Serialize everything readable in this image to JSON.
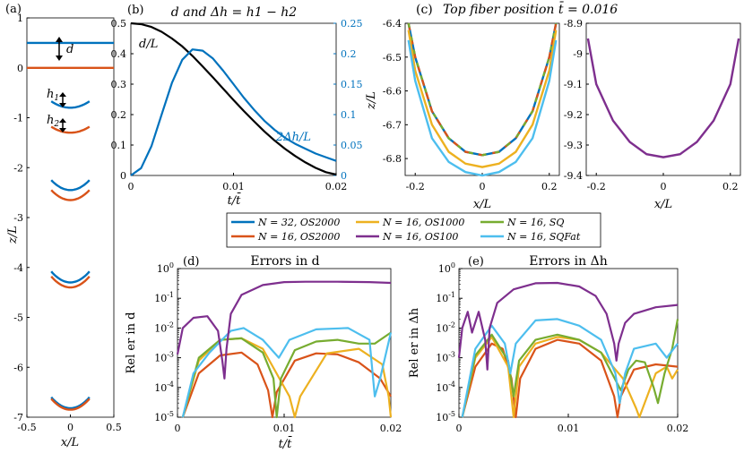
{
  "panel_labels": {
    "a": "(a)",
    "b": "(b)",
    "c": "(c)",
    "d": "(d)",
    "e": "(e)"
  },
  "annotations": {
    "d": "d",
    "h1": "h",
    "h1_sub": "1",
    "h2": "h",
    "h2_sub": "2",
    "dL": "d/L",
    "dhL": "2Δh/L"
  },
  "colors": {
    "blue": "#0072BD",
    "orange": "#D95319",
    "yellow": "#EDB120",
    "purple": "#7E2F8E",
    "green": "#77AC30",
    "cyan": "#4DBEEE",
    "black": "#000000"
  },
  "legend": [
    {
      "label": "N = 32, OS2000",
      "color": "#0072BD"
    },
    {
      "label": "N = 16, OS2000",
      "color": "#D95319"
    },
    {
      "label": "N = 16, OS1000",
      "color": "#EDB120"
    },
    {
      "label": "N = 16, OS100",
      "color": "#7E2F8E"
    },
    {
      "label": "N = 16, SQ",
      "color": "#77AC30"
    },
    {
      "label": "N = 16, SQFat",
      "color": "#4DBEEE"
    }
  ],
  "chart_data": [
    {
      "id": "a",
      "type": "line",
      "title": "",
      "xlabel": "x/L",
      "ylabel": "z/L",
      "xlim": [
        -0.5,
        0.5
      ],
      "ylim": [
        -7,
        1
      ],
      "xticks": [
        "-0.5",
        "0",
        "0.5"
      ],
      "yticks": [
        "1",
        "0",
        "-1",
        "-2",
        "-3",
        "-4",
        "-5",
        "-6",
        "-7"
      ],
      "fiber_pairs": [
        {
          "top": {
            "center": 0.5,
            "sag": 0.0,
            "color": "#0072BD"
          },
          "bottom": {
            "center": 0.0,
            "sag": 0.0,
            "color": "#D95319"
          }
        },
        {
          "top": {
            "center": -0.8,
            "sag": 0.13,
            "color": "#0072BD"
          },
          "bottom": {
            "center": -1.3,
            "sag": 0.12,
            "color": "#D95319"
          }
        },
        {
          "top": {
            "center": -2.45,
            "sag": 0.2,
            "color": "#0072BD"
          },
          "bottom": {
            "center": -2.65,
            "sag": 0.2,
            "color": "#D95319"
          }
        },
        {
          "top": {
            "center": -4.3,
            "sag": 0.22,
            "color": "#0072BD"
          },
          "bottom": {
            "center": -4.4,
            "sag": 0.22,
            "color": "#D95319"
          }
        },
        {
          "top": {
            "center": -6.82,
            "sag": 0.22,
            "color": "#0072BD"
          },
          "bottom": {
            "center": -6.85,
            "sag": 0.22,
            "color": "#D95319"
          }
        }
      ]
    },
    {
      "id": "b",
      "type": "line",
      "title": "d and Δh = h1 − h2",
      "xlabel": "t/t̄",
      "ylabel": "",
      "xlim": [
        0,
        0.02
      ],
      "ylim_left": [
        0,
        0.5
      ],
      "ylim_right": [
        0,
        0.25
      ],
      "xticks": [
        "0",
        "0.01",
        "0.02"
      ],
      "yticks_left": [
        "0",
        "0.1",
        "0.2",
        "0.3",
        "0.4",
        "0.5"
      ],
      "yticks_right": [
        "0",
        "0.05",
        "0.1",
        "0.15",
        "0.2",
        "0.25"
      ],
      "series": [
        {
          "name": "d/L",
          "axis": "left",
          "color": "#000000",
          "x": [
            0,
            0.001,
            0.002,
            0.003,
            0.004,
            0.005,
            0.006,
            0.007,
            0.008,
            0.009,
            0.01,
            0.011,
            0.012,
            0.013,
            0.014,
            0.015,
            0.016,
            0.017,
            0.018,
            0.019,
            0.02
          ],
          "y": [
            0.5,
            0.497,
            0.488,
            0.472,
            0.45,
            0.424,
            0.393,
            0.358,
            0.322,
            0.285,
            0.248,
            0.212,
            0.178,
            0.145,
            0.115,
            0.088,
            0.064,
            0.043,
            0.025,
            0.011,
            0.003
          ]
        },
        {
          "name": "2Δh/L",
          "axis": "right",
          "color": "#0072BD",
          "x": [
            0,
            0.001,
            0.002,
            0.003,
            0.004,
            0.005,
            0.006,
            0.007,
            0.008,
            0.009,
            0.01,
            0.011,
            0.012,
            0.013,
            0.014,
            0.015,
            0.016,
            0.017,
            0.018,
            0.019,
            0.02
          ],
          "y": [
            0,
            0.012,
            0.048,
            0.1,
            0.152,
            0.19,
            0.207,
            0.205,
            0.192,
            0.172,
            0.15,
            0.128,
            0.108,
            0.09,
            0.075,
            0.062,
            0.052,
            0.044,
            0.036,
            0.03,
            0.024
          ]
        }
      ]
    },
    {
      "id": "c",
      "type": "line",
      "title": "Top fiber position t̄ = 0.016",
      "xlabel": "x/L",
      "ylabel": "z/L",
      "subplots": [
        {
          "xlim": [
            -0.23,
            0.23
          ],
          "ylim": [
            -6.85,
            -6.4
          ],
          "xticks": [
            "-0.2",
            "0",
            "0.2"
          ],
          "yticks": [
            "-6.4",
            "-6.5",
            "-6.6",
            "-6.7",
            "-6.8"
          ],
          "series": [
            {
              "name": "N = 32, OS2000",
              "color": "#0072BD",
              "x": [
                -0.22,
                -0.2,
                -0.15,
                -0.1,
                -0.05,
                0,
                0.05,
                0.1,
                0.15,
                0.2,
                0.22
              ],
              "y": [
                -6.4,
                -6.5,
                -6.66,
                -6.74,
                -6.78,
                -6.79,
                -6.78,
                -6.74,
                -6.66,
                -6.5,
                -6.4
              ]
            },
            {
              "name": "N = 16, OS2000",
              "color": "#D95319",
              "x": [
                -0.22,
                -0.2,
                -0.15,
                -0.1,
                -0.05,
                0,
                0.05,
                0.1,
                0.15,
                0.2,
                0.22
              ],
              "y": [
                -6.4,
                -6.5,
                -6.66,
                -6.74,
                -6.78,
                -6.79,
                -6.78,
                -6.74,
                -6.66,
                -6.5,
                -6.4
              ]
            },
            {
              "name": "N = 16, SQ",
              "color": "#77AC30",
              "x": [
                -0.22,
                -0.2,
                -0.15,
                -0.1,
                -0.05,
                0,
                0.05,
                0.1,
                0.15,
                0.2,
                0.22
              ],
              "y": [
                -6.4,
                -6.5,
                -6.66,
                -6.74,
                -6.78,
                -6.79,
                -6.78,
                -6.74,
                -6.66,
                -6.5,
                -6.4
              ]
            },
            {
              "name": "N = 16, OS1000",
              "color": "#EDB120",
              "x": [
                -0.22,
                -0.2,
                -0.15,
                -0.1,
                -0.05,
                0,
                0.05,
                0.1,
                0.15,
                0.2,
                0.22
              ],
              "y": [
                -6.42,
                -6.54,
                -6.7,
                -6.78,
                -6.815,
                -6.825,
                -6.815,
                -6.78,
                -6.7,
                -6.54,
                -6.42
              ]
            },
            {
              "name": "N = 16, SQFat",
              "color": "#4DBEEE",
              "x": [
                -0.22,
                -0.2,
                -0.15,
                -0.1,
                -0.05,
                0,
                0.05,
                0.1,
                0.15,
                0.2,
                0.22
              ],
              "y": [
                -6.45,
                -6.57,
                -6.74,
                -6.81,
                -6.84,
                -6.85,
                -6.84,
                -6.81,
                -6.74,
                -6.57,
                -6.45
              ]
            }
          ]
        },
        {
          "xlim": [
            -0.23,
            0.23
          ],
          "ylim": [
            -9.4,
            -8.9
          ],
          "xticks": [
            "-0.2",
            "0",
            "0.2"
          ],
          "yticks": [
            "-8.9",
            "-9",
            "-9.1",
            "-9.2",
            "-9.3",
            "-9.4"
          ],
          "series": [
            {
              "name": "N = 16, OS100",
              "color": "#7E2F8E",
              "x": [
                -0.225,
                -0.2,
                -0.15,
                -0.1,
                -0.05,
                0,
                0.05,
                0.1,
                0.15,
                0.2,
                0.225
              ],
              "y": [
                -8.95,
                -9.1,
                -9.22,
                -9.29,
                -9.33,
                -9.34,
                -9.33,
                -9.29,
                -9.22,
                -9.1,
                -8.95
              ]
            }
          ]
        }
      ]
    },
    {
      "id": "d",
      "type": "line",
      "scale": "log",
      "title": "Errors in d",
      "xlabel": "t/t̄",
      "ylabel": "Rel er in d",
      "xlim": [
        0,
        0.02
      ],
      "ylim": [
        1e-05,
        1
      ],
      "xticks": [
        "0",
        "0.01",
        "0.02"
      ],
      "yticks": [
        "10^0",
        "10^-1",
        "10^-2",
        "10^-3",
        "10^-4",
        "10^-5"
      ],
      "series": [
        {
          "name": "N = 16, OS2000",
          "color": "#D95319",
          "x": [
            0.0005,
            0.002,
            0.004,
            0.006,
            0.0075,
            0.0085,
            0.0089,
            0.0093,
            0.011,
            0.013,
            0.015,
            0.017,
            0.019,
            0.02
          ],
          "y": [
            1e-05,
            0.0003,
            0.0012,
            0.0015,
            0.0006,
            8e-05,
            1e-05,
            7e-05,
            0.0008,
            0.0014,
            0.0013,
            0.0007,
            0.0002,
            5e-05
          ]
        },
        {
          "name": "N = 16, OS1000",
          "color": "#EDB120",
          "x": [
            0.0005,
            0.002,
            0.004,
            0.006,
            0.008,
            0.0105,
            0.011,
            0.0115,
            0.014,
            0.017,
            0.0192,
            0.0198,
            0.02
          ],
          "y": [
            1e-05,
            0.0008,
            0.004,
            0.0045,
            0.002,
            5e-05,
            1e-05,
            5e-05,
            0.0014,
            0.002,
            0.0006,
            5e-05,
            1e-05
          ]
        },
        {
          "name": "N = 16, SQ",
          "color": "#77AC30",
          "x": [
            0.0005,
            0.002,
            0.004,
            0.006,
            0.008,
            0.009,
            0.0093,
            0.0097,
            0.011,
            0.013,
            0.015,
            0.017,
            0.0185,
            0.02
          ],
          "y": [
            1e-05,
            0.001,
            0.004,
            0.0045,
            0.0015,
            0.0002,
            1e-05,
            0.0002,
            0.0018,
            0.0035,
            0.004,
            0.003,
            0.003,
            0.007
          ]
        },
        {
          "name": "N = 16, SQFat",
          "color": "#4DBEEE",
          "x": [
            0.0005,
            0.0015,
            0.003,
            0.005,
            0.0062,
            0.008,
            0.0095,
            0.0105,
            0.013,
            0.016,
            0.018,
            0.0185,
            0.019,
            0.02
          ],
          "y": [
            1e-05,
            0.0003,
            0.0015,
            0.008,
            0.01,
            0.004,
            0.001,
            0.004,
            0.009,
            0.01,
            0.004,
            5e-05,
            0.0002,
            0.007
          ]
        },
        {
          "name": "N = 16, OS100",
          "color": "#7E2F8E",
          "x": [
            0,
            0.0005,
            0.0015,
            0.0028,
            0.0038,
            0.0042,
            0.0044,
            0.0046,
            0.005,
            0.006,
            0.008,
            0.01,
            0.012,
            0.015,
            0.018,
            0.02
          ],
          "y": [
            0.0013,
            0.01,
            0.022,
            0.025,
            0.008,
            0.0008,
            0.0002,
            0.002,
            0.03,
            0.13,
            0.28,
            0.35,
            0.36,
            0.36,
            0.35,
            0.33
          ]
        }
      ]
    },
    {
      "id": "e",
      "type": "line",
      "scale": "log",
      "title": "Errors in Δh",
      "xlabel": "",
      "ylabel": "Rel er in Δh",
      "xlim": [
        0,
        0.02
      ],
      "ylim": [
        1e-05,
        1
      ],
      "xticks": [
        "0",
        "0.01",
        "0.02"
      ],
      "yticks": [
        "10^0",
        "10^-1",
        "10^-2",
        "10^-3",
        "10^-4",
        "10^-5"
      ],
      "series": [
        {
          "name": "N = 16, OS2000",
          "color": "#D95319",
          "x": [
            0.0003,
            0.0015,
            0.003,
            0.004,
            0.0048,
            0.0052,
            0.0056,
            0.007,
            0.009,
            0.011,
            0.013,
            0.0142,
            0.0145,
            0.0148,
            0.016,
            0.018,
            0.02
          ],
          "y": [
            1e-05,
            0.0005,
            0.003,
            0.002,
            0.0002,
            1e-05,
            0.0002,
            0.002,
            0.004,
            0.003,
            0.0008,
            5e-05,
            1e-05,
            5e-05,
            0.0004,
            0.0006,
            0.0005
          ]
        },
        {
          "name": "N = 16, OS1000",
          "color": "#EDB120",
          "x": [
            0.0003,
            0.0015,
            0.003,
            0.0045,
            0.005,
            0.0055,
            0.007,
            0.009,
            0.011,
            0.013,
            0.015,
            0.0162,
            0.0165,
            0.0168,
            0.018,
            0.019,
            0.0195,
            0.02
          ],
          "y": [
            1e-05,
            0.001,
            0.005,
            0.0005,
            1e-05,
            0.0005,
            0.003,
            0.005,
            0.004,
            0.0015,
            0.0002,
            2e-05,
            1e-05,
            2e-05,
            0.0003,
            0.0005,
            0.0002,
            0.0004
          ]
        },
        {
          "name": "N = 16, SQ",
          "color": "#77AC30",
          "x": [
            0.0003,
            0.0015,
            0.003,
            0.0045,
            0.005,
            0.0055,
            0.007,
            0.009,
            0.011,
            0.013,
            0.0148,
            0.0155,
            0.0162,
            0.017,
            0.0178,
            0.0182,
            0.0188,
            0.0195,
            0.02
          ],
          "y": [
            1e-05,
            0.0012,
            0.006,
            0.0008,
            5e-05,
            0.0008,
            0.004,
            0.006,
            0.004,
            0.0015,
            8e-05,
            0.0004,
            0.0008,
            0.0007,
            0.0001,
            3e-05,
            0.0003,
            0.002,
            0.02
          ]
        },
        {
          "name": "N = 16, SQFat",
          "color": "#4DBEEE",
          "x": [
            0.0003,
            0.0015,
            0.003,
            0.0042,
            0.0047,
            0.0052,
            0.007,
            0.009,
            0.011,
            0.013,
            0.0143,
            0.0147,
            0.0152,
            0.016,
            0.018,
            0.019,
            0.02
          ],
          "y": [
            1e-05,
            0.002,
            0.012,
            0.003,
            0.0003,
            0.003,
            0.018,
            0.02,
            0.012,
            0.004,
            0.0003,
            3e-05,
            0.0003,
            0.002,
            0.003,
            0.001,
            0.003
          ]
        },
        {
          "name": "N = 16, OS100",
          "color": "#7E2F8E",
          "x": [
            0,
            0.0003,
            0.0008,
            0.0012,
            0.0018,
            0.0024,
            0.0026,
            0.0028,
            0.0035,
            0.005,
            0.007,
            0.009,
            0.011,
            0.0125,
            0.0135,
            0.0142,
            0.0144,
            0.0146,
            0.0152,
            0.016,
            0.018,
            0.02
          ],
          "y": [
            0.001,
            0.01,
            0.035,
            0.007,
            0.035,
            0.004,
            0.0004,
            0.01,
            0.07,
            0.2,
            0.32,
            0.33,
            0.25,
            0.12,
            0.03,
            0.003,
            0.0008,
            0.003,
            0.015,
            0.03,
            0.05,
            0.06
          ]
        }
      ]
    }
  ]
}
